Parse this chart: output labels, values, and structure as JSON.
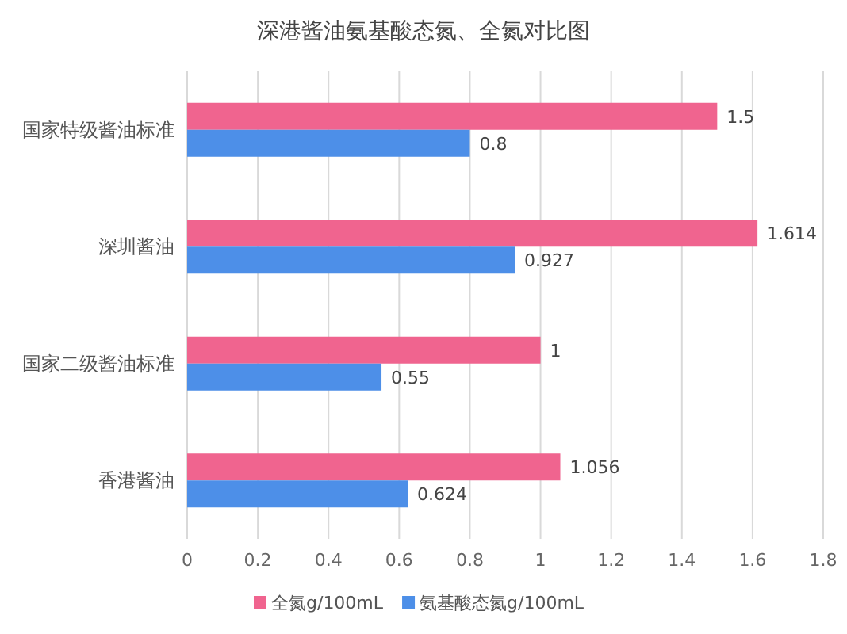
{
  "chart_data": {
    "type": "bar",
    "orientation": "horizontal",
    "title": "深港酱油氨基酸态氮、全氮对比图",
    "categories": [
      "国家特级酱油标准",
      "深圳酱油",
      "国家二级酱油标准",
      "香港酱油"
    ],
    "series": [
      {
        "name": "全氮g/100mL",
        "color": "#f0648f",
        "values": [
          1.5,
          1.614,
          1,
          1.056
        ]
      },
      {
        "name": "氨基酸态氮g/100mL",
        "color": "#4d8fe8",
        "values": [
          0.8,
          0.927,
          0.55,
          0.624
        ]
      }
    ],
    "xlim": [
      0,
      1.8
    ],
    "xticks": [
      0,
      0.2,
      0.4,
      0.6,
      0.8,
      1,
      1.2,
      1.4,
      1.6,
      1.8
    ],
    "grid": "x",
    "legend": "bottom",
    "data_labels": true
  }
}
